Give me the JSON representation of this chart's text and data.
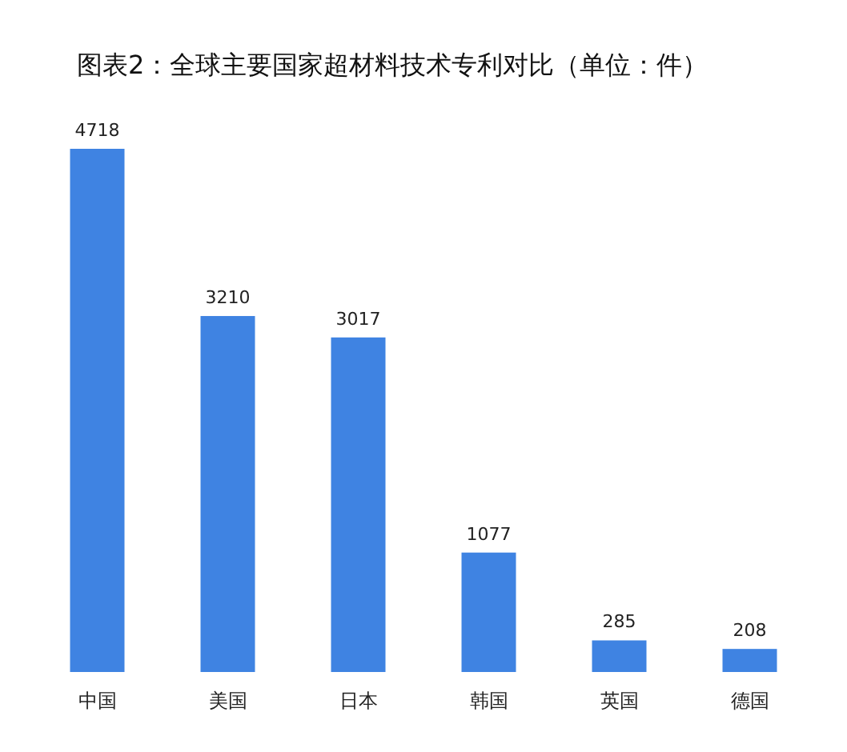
{
  "chart_data": {
    "type": "bar",
    "title": "图表2：全球主要国家超材料技术专利对比（单位：件）",
    "categories": [
      "中国",
      "美国",
      "日本",
      "韩国",
      "英国",
      "德国"
    ],
    "values": [
      4718,
      3210,
      3017,
      1077,
      285,
      208
    ],
    "color": "#3f83e2",
    "data_labels": true
  }
}
